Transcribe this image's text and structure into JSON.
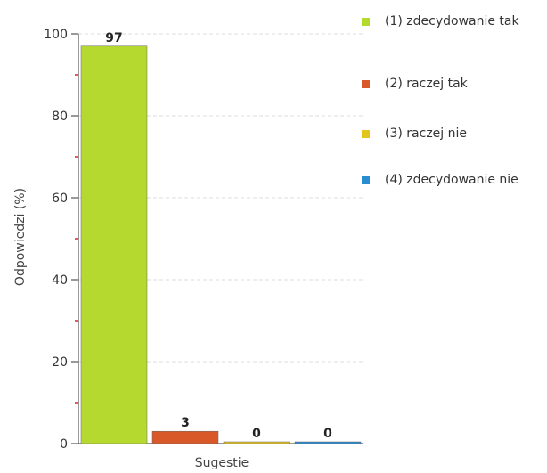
{
  "chart_data": {
    "type": "bar",
    "xlabel": "Sugestie",
    "ylabel": "Odpowiedzi (%)",
    "ylim": [
      0,
      100
    ],
    "yticks": [
      0,
      20,
      40,
      60,
      80,
      100
    ],
    "grid": true,
    "legend_position": "right",
    "series": [
      {
        "name": "(1) zdecydowanie tak",
        "value": 97,
        "label": "97",
        "color": "#b5d92f"
      },
      {
        "name": "(2) raczej tak",
        "value": 3,
        "label": "3",
        "color": "#d8582a"
      },
      {
        "name": "(3) raczej nie",
        "value": 0,
        "label": "0",
        "color": "#e2c41f"
      },
      {
        "name": "(4) zdecydowanie nie",
        "value": 0,
        "label": "0",
        "color": "#2a8cd1"
      }
    ]
  }
}
